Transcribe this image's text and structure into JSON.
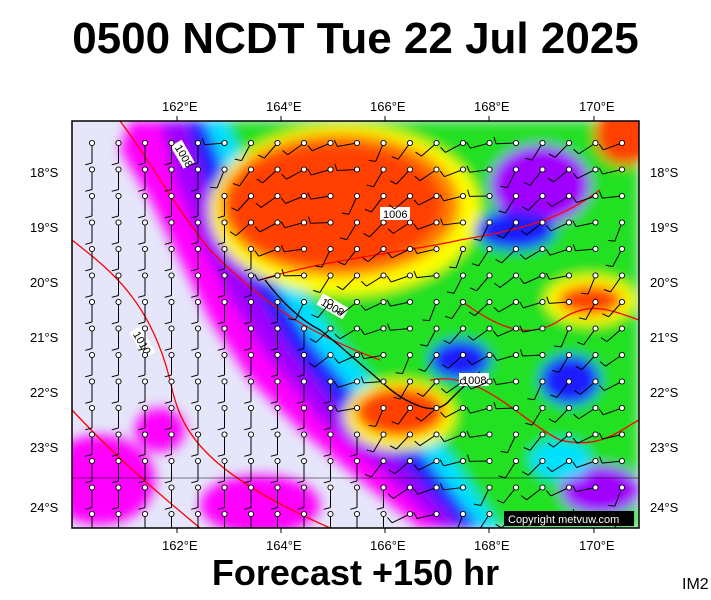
{
  "header": {
    "title": "0500 NCDT Tue 22 Jul 2025"
  },
  "footer": {
    "forecast": "Forecast +150 hr"
  },
  "corner_tag": "IM2",
  "map": {
    "lon_labels": [
      "162°E",
      "164°E",
      "166°E",
      "168°E",
      "170°E"
    ],
    "lat_labels": [
      "18°S",
      "19°S",
      "20°S",
      "21°S",
      "22°S",
      "23°S",
      "24°S"
    ],
    "copyright": "Copyright metvuw.com",
    "isobar_labels": [
      "1008",
      "1006",
      "1008",
      "1010",
      "1008"
    ],
    "colors": {
      "calm": "#e6e6fa",
      "magenta": "#ff00ff",
      "violet": "#a000ff",
      "blue": "#1a1aff",
      "cyan": "#00e0ff",
      "green": "#20e020",
      "yellow": "#ffff00",
      "orange": "#ff8000",
      "red": "#ff4000",
      "isobar": "#ff0000"
    }
  }
}
